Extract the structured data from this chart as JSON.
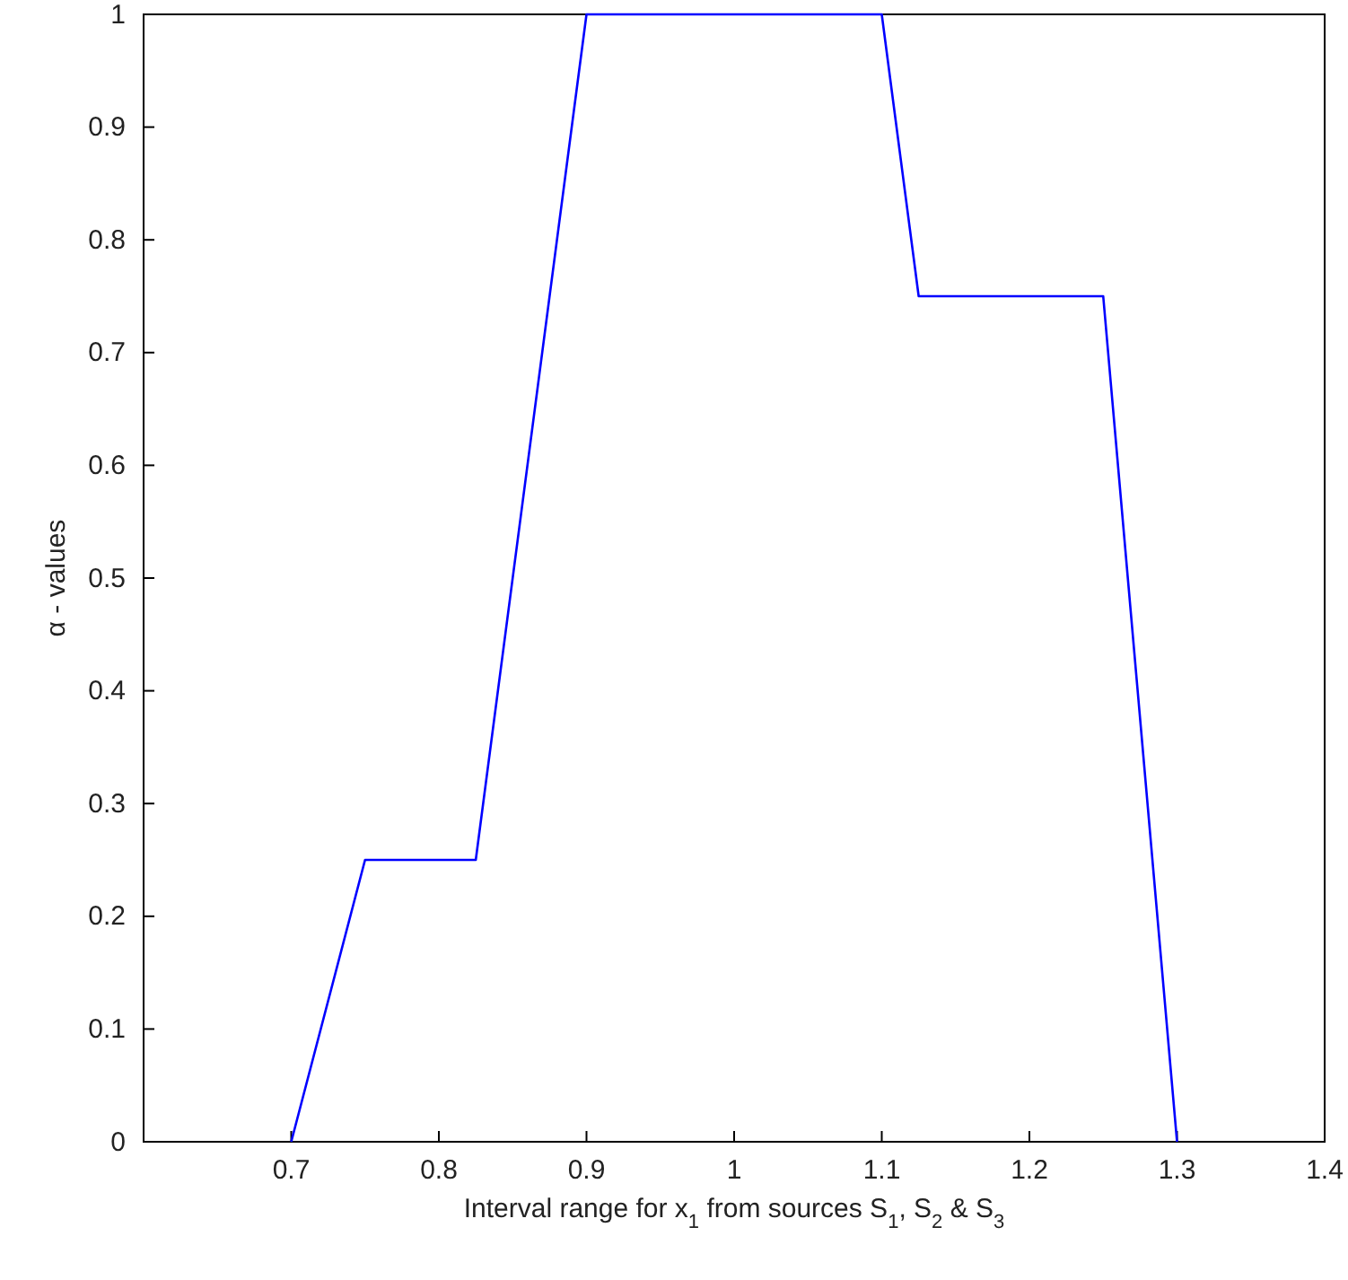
{
  "chart_data": {
    "type": "line",
    "xlabel": "Interval range for x$_{1}$ from sources S$_{1}$, S$_{2}$ & S$_{3}$",
    "ylabel": "α - values",
    "x": [
      0.7,
      0.75,
      0.825,
      0.9,
      1.1,
      1.125,
      1.25,
      1.3
    ],
    "series": [
      {
        "color": "#0000ff",
        "values": [
          0,
          0.25,
          0.25,
          1,
          1,
          0.75,
          0.75,
          0
        ]
      }
    ],
    "xlim": [
      0.6,
      1.4
    ],
    "xticks": [
      0.7,
      0.8,
      0.9,
      1,
      1.1,
      1.2,
      1.3,
      1.4
    ],
    "ylim": [
      0,
      1
    ],
    "yticks": [
      0,
      0.1,
      0.2,
      0.3,
      0.4,
      0.5,
      0.6,
      0.7,
      0.8,
      0.9,
      1
    ],
    "grid": false,
    "marker": "none",
    "line_style": "solid"
  }
}
